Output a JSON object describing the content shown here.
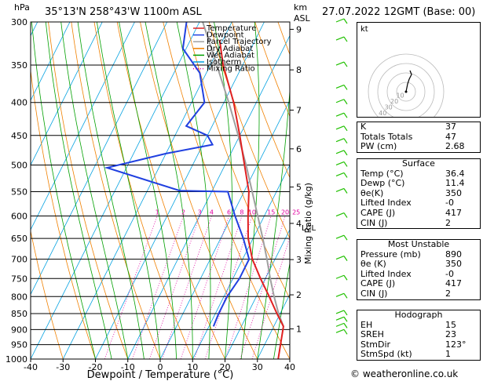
{
  "header": {
    "hpa_unit": "hPa",
    "location": "35°13'N  258°43'W  1100m  ASL",
    "km_unit": "km",
    "asl_unit": "ASL",
    "datetime": "27.07.2022  12GMT  (Base: 00)"
  },
  "chart_data": {
    "type": "skew-t",
    "xlabel": "Dewpoint / Temperature (°C)",
    "ylabel_right": "Mixing Ratio (g/kg)",
    "pressure_levels": [
      300,
      350,
      400,
      450,
      500,
      550,
      600,
      650,
      700,
      750,
      800,
      850,
      900,
      950,
      1000
    ],
    "x_ticks": [
      -40,
      -30,
      -20,
      -10,
      0,
      10,
      20,
      30,
      40
    ],
    "xlim": [
      -40,
      40
    ],
    "ylim": [
      1000,
      300
    ],
    "mixing_ratio_labels": [
      "1",
      "2",
      "3",
      "4",
      "6",
      "8",
      "10",
      "15",
      "20",
      "25"
    ],
    "lcl_label": "LCL",
    "legend": [
      "Temperature",
      "Dewpoint",
      "Parcel Trajectory",
      "Dry Adiabat",
      "Wet Adiabat",
      "Isotherm",
      "Mixing Ratio"
    ],
    "temperature": [
      [
        1000,
        36.4
      ],
      [
        890,
        33
      ],
      [
        850,
        29
      ],
      [
        800,
        24
      ],
      [
        750,
        18.5
      ],
      [
        700,
        13
      ],
      [
        650,
        8.5
      ],
      [
        600,
        5
      ],
      [
        550,
        1.5
      ],
      [
        500,
        -4
      ],
      [
        450,
        -10
      ],
      [
        400,
        -17
      ],
      [
        350,
        -26
      ],
      [
        320,
        -31
      ]
    ],
    "dewpoint": [
      [
        890,
        11.4
      ],
      [
        850,
        11
      ],
      [
        800,
        11
      ],
      [
        750,
        12
      ],
      [
        700,
        12
      ],
      [
        650,
        7
      ],
      [
        600,
        1
      ],
      [
        550,
        -5
      ],
      [
        548,
        -20
      ],
      [
        505,
        -46
      ],
      [
        480,
        -30
      ],
      [
        465,
        -17
      ],
      [
        450,
        -20
      ],
      [
        435,
        -28
      ],
      [
        400,
        -26
      ],
      [
        360,
        -32
      ],
      [
        330,
        -41
      ],
      [
        300,
        -44
      ]
    ],
    "parcel": [
      [
        890,
        33
      ],
      [
        850,
        29.5
      ],
      [
        800,
        25.5
      ],
      [
        750,
        21.5
      ],
      [
        700,
        17.5
      ],
      [
        650,
        13
      ],
      [
        600,
        8
      ],
      [
        550,
        2.5
      ],
      [
        500,
        -3.5
      ],
      [
        450,
        -10.5
      ],
      [
        400,
        -18.5
      ],
      [
        350,
        -28
      ],
      [
        300,
        -39
      ]
    ],
    "km_ticks": [
      {
        "label": "9",
        "p": 308
      },
      {
        "label": "8",
        "p": 356
      },
      {
        "label": "7",
        "p": 411
      },
      {
        "label": "6",
        "p": 472
      },
      {
        "label": "5",
        "p": 541
      },
      {
        "label": "4",
        "p": 616
      },
      {
        "label": "3",
        "p": 701
      },
      {
        "label": "2",
        "p": 795
      },
      {
        "label": "1",
        "p": 898
      }
    ]
  },
  "hodograph": {
    "unit": "kt",
    "ring_labels": [
      "10",
      "20",
      "30",
      "40"
    ]
  },
  "indices": {
    "k_label": "K",
    "k": "37",
    "tt_label": "Totals Totals",
    "tt": "47",
    "pw_label": "PW (cm)",
    "pw": "2.68"
  },
  "surface": {
    "title": "Surface",
    "temp_label": "Temp (°C)",
    "temp": "36.4",
    "dewp_label": "Dewp (°C)",
    "dewp": "11.4",
    "theta_label": "θe(K)",
    "theta": "350",
    "li_label": "Lifted Index",
    "li": "-0",
    "cape_label": "CAPE (J)",
    "cape": "417",
    "cin_label": "CIN (J)",
    "cin": "2"
  },
  "unstable": {
    "title": "Most Unstable",
    "pres_label": "Pressure (mb)",
    "pres": "890",
    "theta_label": "θe (K)",
    "theta": "350",
    "li_label": "Lifted Index",
    "li": "-0",
    "cape_label": "CAPE (J)",
    "cape": "417",
    "cin_label": "CIN (J)",
    "cin": "2"
  },
  "hodo_table": {
    "title": "Hodograph",
    "eh_label": "EH",
    "eh": "15",
    "sreh_label": "SREH",
    "sreh": "23",
    "stmdir_label": "StmDir",
    "stmdir": "123°",
    "stmspd_label": "StmSpd (kt)",
    "stmspd": "1"
  },
  "footer": {
    "copyright": "© weatheronline.co.uk"
  },
  "colors": {
    "temperature": "#e02020",
    "dewpoint": "#2040e0",
    "parcel": "#a0a0a0",
    "dry_adiabat": "#f08000",
    "wet_adiabat": "#00a000",
    "isotherm": "#00a0e0",
    "mixing_ratio": "#e000a0",
    "wind": "#20c000"
  }
}
